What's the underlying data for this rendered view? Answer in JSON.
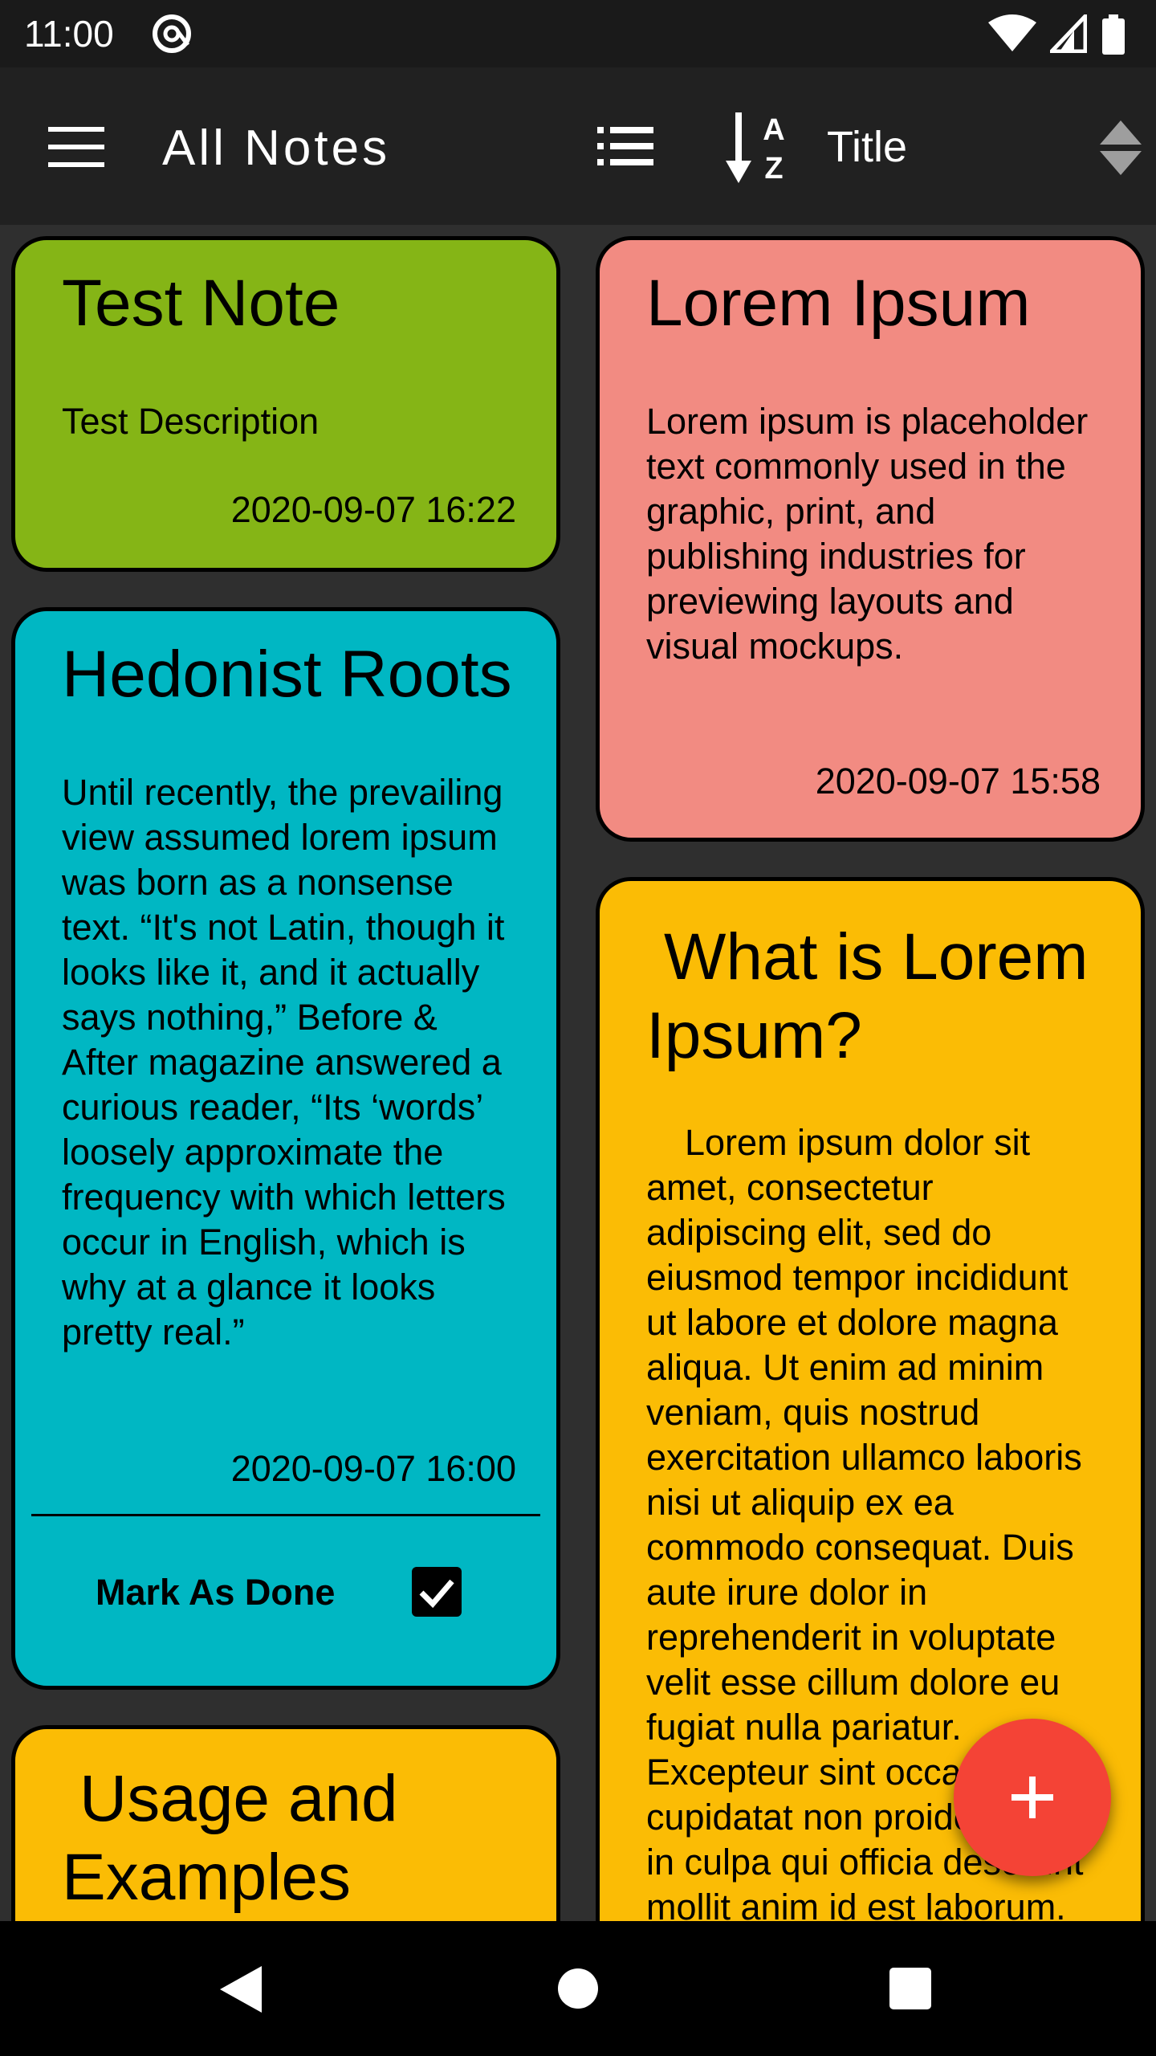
{
  "status_bar": {
    "time": "11:00"
  },
  "app_bar": {
    "title": "All Notes",
    "sort_label": "Title"
  },
  "notes": [
    {
      "title": "Test Note",
      "description": "Test Description",
      "date": "2020-09-07 16:22",
      "color": "#85b516"
    },
    {
      "title": "Lorem Ipsum",
      "description": "Lorem ipsum is placeholder text commonly used in the graphic, print, and publishing industries for previewing layouts and visual mockups.",
      "date": "2020-09-07 15:58",
      "color": "#f28b82"
    },
    {
      "title": "Hedonist Roots",
      "description": "Until recently, the prevailing view assumed lorem ipsum was born as a nonsense text. “It's not Latin, though it looks like it, and it actually says nothing,” Before & After magazine answered a curious reader, “Its ‘words’ loosely approximate the frequency with which letters occur in English, which is why at a glance it looks pretty real.”",
      "date": "2020-09-07 16:00",
      "color": "#00b7c3",
      "done_label": "Mark As Done",
      "done_checked": true
    },
    {
      "title": "What is Lorem Ipsum?",
      "description": "Lorem ipsum dolor sit amet, consectetur adipiscing elit, sed do eiusmod tempor incididunt ut labore et dolore magna aliqua. Ut enim ad minim veniam, quis nostrud exercitation ullamco laboris nisi ut aliquip ex ea commodo consequat. Duis aute irure dolor in reprehenderit in voluptate velit esse cillum dolore eu fugiat nulla pariatur. Excepteur sint occaecat cupidatat non proident, sunt in culpa qui officia deserunt mollit anim id est laborum.",
      "color": "#fbbc05"
    },
    {
      "title": "Usage and Examples",
      "color": "#fbbc05"
    }
  ],
  "icons": {
    "menu": "menu-icon",
    "list_view": "list-view-icon",
    "sort": "sort-az-icon",
    "sort_order": "sort-order-icon",
    "add": "plus-icon",
    "back": "nav-back-icon",
    "home": "nav-home-icon",
    "recents": "nav-recents-icon"
  },
  "colors": {
    "background": "#2f2f2f",
    "app_bar": "#212121",
    "fab": "#f44336"
  }
}
